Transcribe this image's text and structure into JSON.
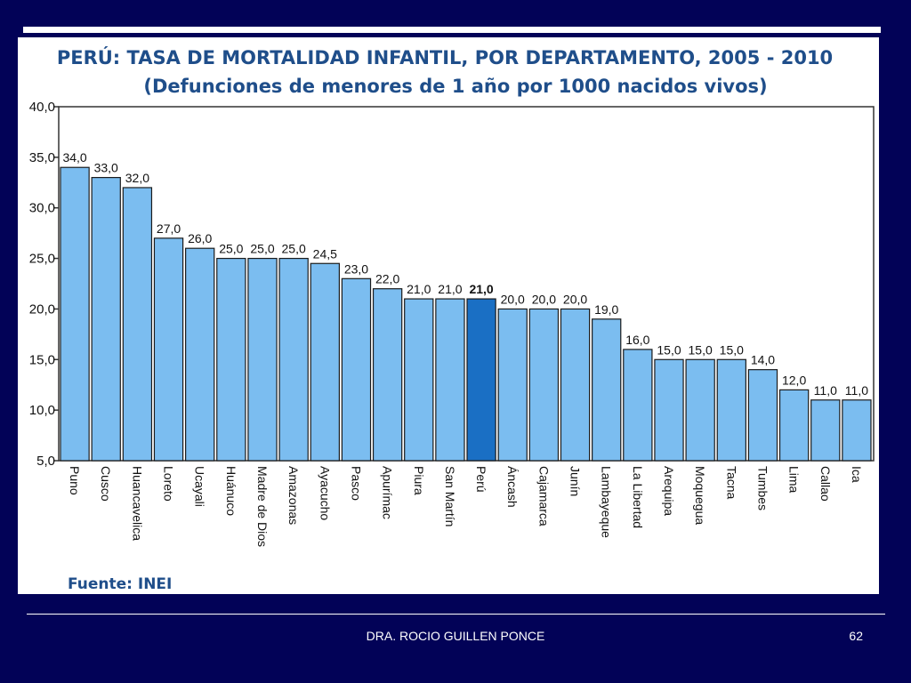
{
  "chart_data": {
    "type": "bar",
    "title": "PERÚ: TASA DE MORTALIDAD INFANTIL, POR DEPARTAMENTO, 2005 - 2010",
    "subtitle": "(Defunciones de menores de 1 año por 1000 nacidos vivos)",
    "xlabel": "",
    "ylabel": "",
    "ylim": [
      5,
      40
    ],
    "yticks": [
      5,
      10,
      15,
      20,
      25,
      30,
      35,
      40
    ],
    "ytick_labels": [
      "5,0",
      "10,0",
      "15,0",
      "20,0",
      "25,0",
      "30,0",
      "35,0",
      "40,0"
    ],
    "grid": false,
    "categories": [
      "Puno",
      "Cusco",
      "Huancavelica",
      "Loreto",
      "Ucayali",
      "Huánuco",
      "Madre de Dios",
      "Amazonas",
      "Ayacucho",
      "Pasco",
      "Apurímac",
      "Piura",
      "San Martín",
      "Perú",
      "Áncash",
      "Cajamarca",
      "Junín",
      "Lambayeque",
      "La Libertad",
      "Arequipa",
      "Moquegua",
      "Tacna",
      "Tumbes",
      "Lima",
      "Callao",
      "Ica"
    ],
    "values": [
      34.0,
      33.0,
      32.0,
      27.0,
      26.0,
      25.0,
      25.0,
      25.0,
      24.5,
      23.0,
      22.0,
      21.0,
      21.0,
      21.0,
      20.0,
      20.0,
      20.0,
      19.0,
      16.0,
      15.0,
      15.0,
      15.0,
      14.0,
      12.0,
      11.0,
      11.0
    ],
    "value_labels": [
      "34,0",
      "33,0",
      "32,0",
      "27,0",
      "26,0",
      "25,0",
      "25,0",
      "25,0",
      "24,5",
      "23,0",
      "22,0",
      "21,0",
      "21,0",
      "21,0",
      "20,0",
      "20,0",
      "20,0",
      "19,0",
      "16,0",
      "15,0",
      "15,0",
      "15,0",
      "14,0",
      "12,0",
      "11,0",
      "11,0"
    ],
    "highlight_category": "Perú",
    "source": "Fuente: INEI",
    "colors": {
      "bar": "#7bbdf0",
      "bar_highlight": "#1a6fc4",
      "bar_stroke": "#1b1b1b",
      "title": "#1f4e8a",
      "axis": "#333333"
    }
  },
  "footer": {
    "author": "DRA. ROCIO GUILLEN PONCE",
    "page_number": "62"
  },
  "colors": {
    "slide_background": "#020257",
    "footer_text": "#ffffff"
  }
}
